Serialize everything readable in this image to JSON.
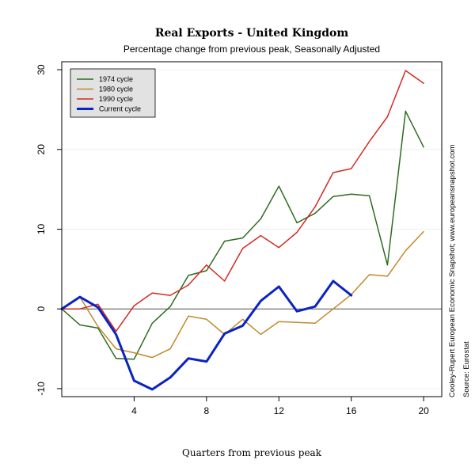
{
  "chart_data": {
    "type": "line",
    "title": "Real Exports - United Kingdom",
    "subtitle": "Percentage change from previous peak, Seasonally Adjusted",
    "xlabel": "Quarters from previous peak",
    "ylabel": "",
    "xlim": [
      0,
      21
    ],
    "ylim": [
      -11,
      31
    ],
    "x_ticks": [
      4,
      8,
      12,
      16,
      20
    ],
    "y_ticks": [
      -10,
      0,
      10,
      20,
      30
    ],
    "grid": true,
    "legend_position": "top-left",
    "reference_line": 0,
    "series": [
      {
        "name": "1974 cycle",
        "color": "#2e6b1f",
        "width": 1.5,
        "x": [
          0,
          1,
          2,
          3,
          4,
          5,
          6,
          7,
          8,
          9,
          10,
          11,
          12,
          13,
          14,
          15,
          16,
          17,
          18,
          19,
          20,
          21
        ],
        "values": [
          0,
          -2,
          -2.4,
          -6.2,
          -6.3,
          -1.8,
          0.3,
          4.2,
          4.8,
          8.5,
          8.9,
          11.3,
          15.4,
          10.8,
          12,
          14.1,
          14.4,
          14.2,
          5.5,
          24.8,
          20.3,
          null
        ]
      },
      {
        "name": "1980 cycle",
        "color": "#c08a2a",
        "width": 1.5,
        "x": [
          0,
          1,
          2,
          3,
          4,
          5,
          6,
          7,
          8,
          9,
          10,
          11,
          12,
          13,
          14,
          15,
          16,
          17,
          18,
          19,
          20,
          21
        ],
        "values": [
          0,
          1.5,
          -2.2,
          -5,
          -5.5,
          -6.1,
          -5,
          -0.9,
          -1.3,
          -3.2,
          -1.3,
          -3.2,
          -1.6,
          -1.7,
          -1.8,
          0,
          1.8,
          4.3,
          4.1,
          7.3,
          9.7,
          null
        ]
      },
      {
        "name": "1990 cycle",
        "color": "#d22b22",
        "width": 1.5,
        "x": [
          0,
          1,
          2,
          3,
          4,
          5,
          6,
          7,
          8,
          9,
          10,
          11,
          12,
          13,
          14,
          15,
          16,
          17,
          18,
          19,
          20,
          21
        ],
        "values": [
          0,
          0,
          0.6,
          -2.8,
          0.4,
          2,
          1.7,
          3,
          5.5,
          3.5,
          7.6,
          9.2,
          7.7,
          9.6,
          12.8,
          17.1,
          17.6,
          21,
          24.1,
          29.9,
          28.3,
          null
        ]
      },
      {
        "name": "Current cycle",
        "color": "#0b23c4",
        "width": 3,
        "x": [
          0,
          1,
          2,
          3,
          4,
          5,
          6,
          7,
          8,
          9,
          10,
          11,
          12,
          13,
          14,
          15,
          16
        ],
        "values": [
          0,
          1.5,
          0.2,
          -3.2,
          -9,
          -10.1,
          -8.6,
          -6.2,
          -6.6,
          -3.1,
          -2.1,
          1,
          2.8,
          -0.3,
          0.3,
          3.5,
          1.7
        ]
      }
    ],
    "side_notes": [
      "Cooley-Rupert European Economic Snapshot; www.europeansnapshot.com",
      "Source: Eurostat"
    ]
  }
}
